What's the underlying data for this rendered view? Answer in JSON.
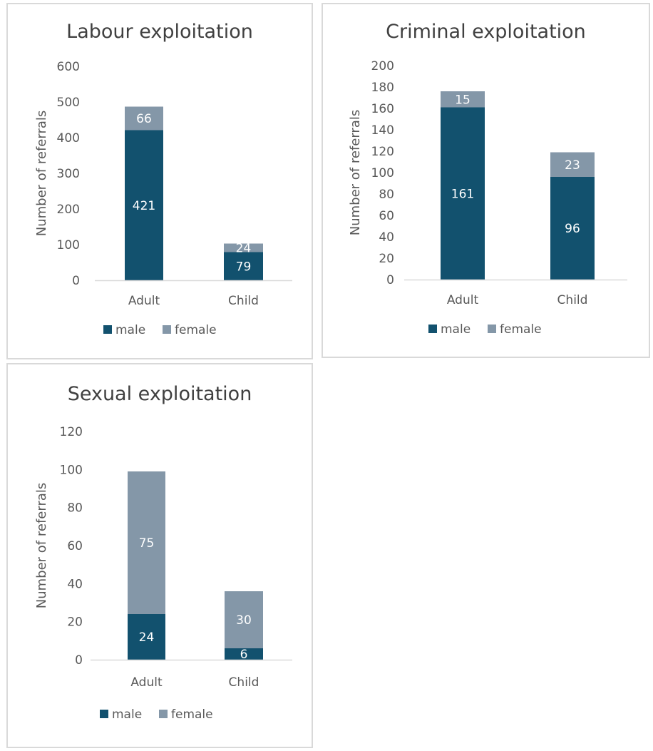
{
  "colors": {
    "male": "#12516e",
    "female": "#8497a8"
  },
  "chart_data": [
    {
      "type": "bar",
      "stacked": true,
      "title": "Labour exploitation",
      "ylabel": "Number of referrals",
      "categories": [
        "Adult",
        "Child"
      ],
      "ylim": [
        0,
        600
      ],
      "yticks": [
        0,
        100,
        200,
        300,
        400,
        500,
        600
      ],
      "series": [
        {
          "name": "male",
          "values": [
            421,
            79
          ]
        },
        {
          "name": "female",
          "values": [
            66,
            24
          ]
        }
      ],
      "legend": "bottom",
      "grid": false
    },
    {
      "type": "bar",
      "stacked": true,
      "title": "Criminal exploitation",
      "ylabel": "Number of referrals",
      "categories": [
        "Adult",
        "Child"
      ],
      "ylim": [
        0,
        200
      ],
      "yticks": [
        0,
        20,
        40,
        60,
        80,
        100,
        120,
        140,
        160,
        180,
        200
      ],
      "series": [
        {
          "name": "male",
          "values": [
            161,
            96
          ]
        },
        {
          "name": "female",
          "values": [
            15,
            23
          ]
        }
      ],
      "legend": "bottom",
      "grid": false
    },
    {
      "type": "bar",
      "stacked": true,
      "title": "Sexual exploitation",
      "ylabel": "Number of referrals",
      "categories": [
        "Adult",
        "Child"
      ],
      "ylim": [
        0,
        120
      ],
      "yticks": [
        0,
        20,
        40,
        60,
        80,
        100,
        120
      ],
      "series": [
        {
          "name": "male",
          "values": [
            24,
            6
          ]
        },
        {
          "name": "female",
          "values": [
            75,
            30
          ]
        }
      ],
      "legend": "bottom",
      "grid": false
    }
  ]
}
